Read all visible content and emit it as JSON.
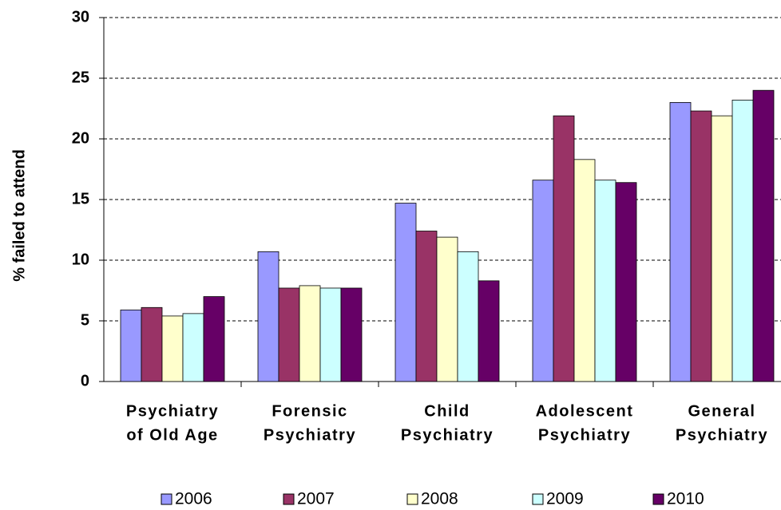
{
  "chart_data": {
    "type": "bar",
    "y_label": "% failed to attend",
    "categories": [
      [
        "Psychiatry",
        "of Old Age"
      ],
      [
        "Forensic",
        "Psychiatry"
      ],
      [
        "Child",
        "Psychiatry"
      ],
      [
        "Adolescent",
        "Psychiatry"
      ],
      [
        "General",
        "Psychiatry"
      ]
    ],
    "series": [
      {
        "name": "2006",
        "color": "#9999ff",
        "values": [
          5.9,
          10.7,
          14.7,
          16.6,
          23.0
        ]
      },
      {
        "name": "2007",
        "color": "#993366",
        "values": [
          6.1,
          7.7,
          12.4,
          21.9,
          22.3
        ]
      },
      {
        "name": "2008",
        "color": "#ffffcc",
        "values": [
          5.4,
          7.9,
          11.9,
          18.3,
          21.9
        ]
      },
      {
        "name": "2009",
        "color": "#ccffff",
        "values": [
          5.6,
          7.7,
          10.7,
          16.6,
          23.2
        ]
      },
      {
        "name": "2010",
        "color": "#660066",
        "values": [
          7.0,
          7.7,
          8.3,
          16.4,
          24.0
        ]
      }
    ],
    "ylim": [
      0,
      30
    ],
    "yticks": [
      0,
      5,
      10,
      15,
      20,
      25,
      30
    ],
    "grid": true,
    "legend": "bottom"
  }
}
